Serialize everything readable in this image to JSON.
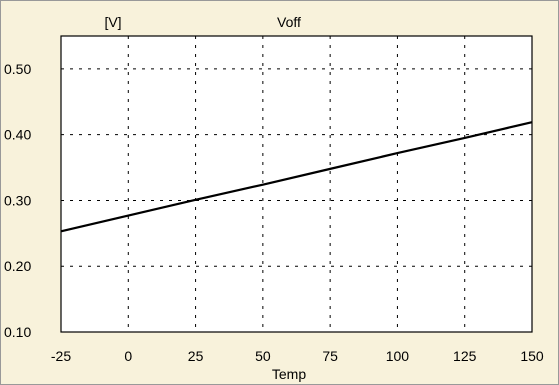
{
  "chart_data": {
    "type": "line",
    "title": "Voff",
    "ylabel": "[V]",
    "xlabel": "Temp",
    "xlim": [
      -25,
      150
    ],
    "ylim": [
      0.1,
      0.55
    ],
    "x_ticks": [
      -25,
      0,
      25,
      50,
      75,
      100,
      125,
      150
    ],
    "x_tick_labels": [
      "-25",
      "0",
      "25",
      "50",
      "75",
      "100",
      "125",
      "150"
    ],
    "y_ticks": [
      0.1,
      0.2,
      0.3,
      0.4,
      0.5
    ],
    "y_tick_labels": [
      "0.10",
      "0.20",
      "0.30",
      "0.40",
      "0.50"
    ],
    "grid": true,
    "series": [
      {
        "x": [
          -25,
          0,
          25,
          50,
          75,
          100,
          125,
          150
        ],
        "y": [
          0.253,
          0.277,
          0.301,
          0.324,
          0.348,
          0.372,
          0.395,
          0.419
        ],
        "color": "#000000"
      }
    ]
  },
  "colors": {
    "background": "#f8f2db",
    "plot_background": "#ffffff",
    "line": "#000000"
  }
}
